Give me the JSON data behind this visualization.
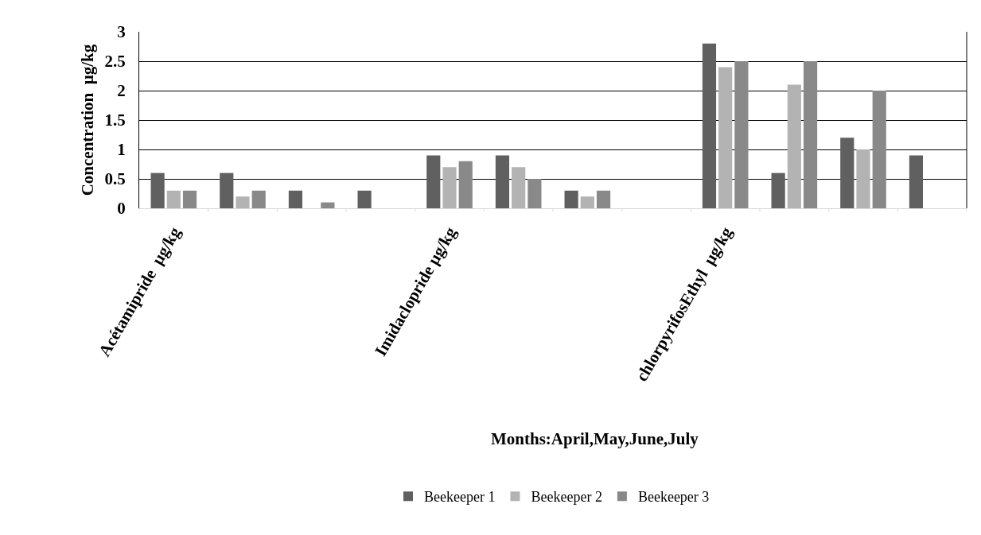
{
  "chart_data": {
    "type": "bar",
    "xlabel": "Months:April,May,June,July",
    "ylabel": "Concentration  µg/kg",
    "categories": [
      "Acétamipride  µg/kg",
      null,
      null,
      null,
      "Imidaclopride µg/kg",
      null,
      null,
      null,
      "chlorpyrifosEthyl  µg/kg",
      null,
      null,
      null
    ],
    "series": [
      {
        "name": "Beekeeper 1",
        "color": "#606060",
        "values": [
          0.6,
          0.6,
          0.3,
          0.3,
          0.9,
          0.9,
          0.3,
          0,
          2.8,
          0.6,
          1.2,
          0.9
        ]
      },
      {
        "name": "Beekeeper 2",
        "color": "#b3b3b3",
        "values": [
          0.3,
          0.2,
          0,
          0,
          0.7,
          0.7,
          0.2,
          0,
          2.4,
          2.1,
          1.0,
          0
        ]
      },
      {
        "name": "Beekeeper 3",
        "color": "#898989",
        "values": [
          0.3,
          0.3,
          0.1,
          0,
          0.8,
          0.5,
          0.3,
          0,
          2.5,
          2.5,
          2.0,
          0
        ]
      }
    ],
    "ylim": [
      0,
      3
    ],
    "yticks": [
      0,
      0.5,
      1,
      1.5,
      2,
      2.5,
      3
    ],
    "grid": "y",
    "legend": "bottom"
  }
}
